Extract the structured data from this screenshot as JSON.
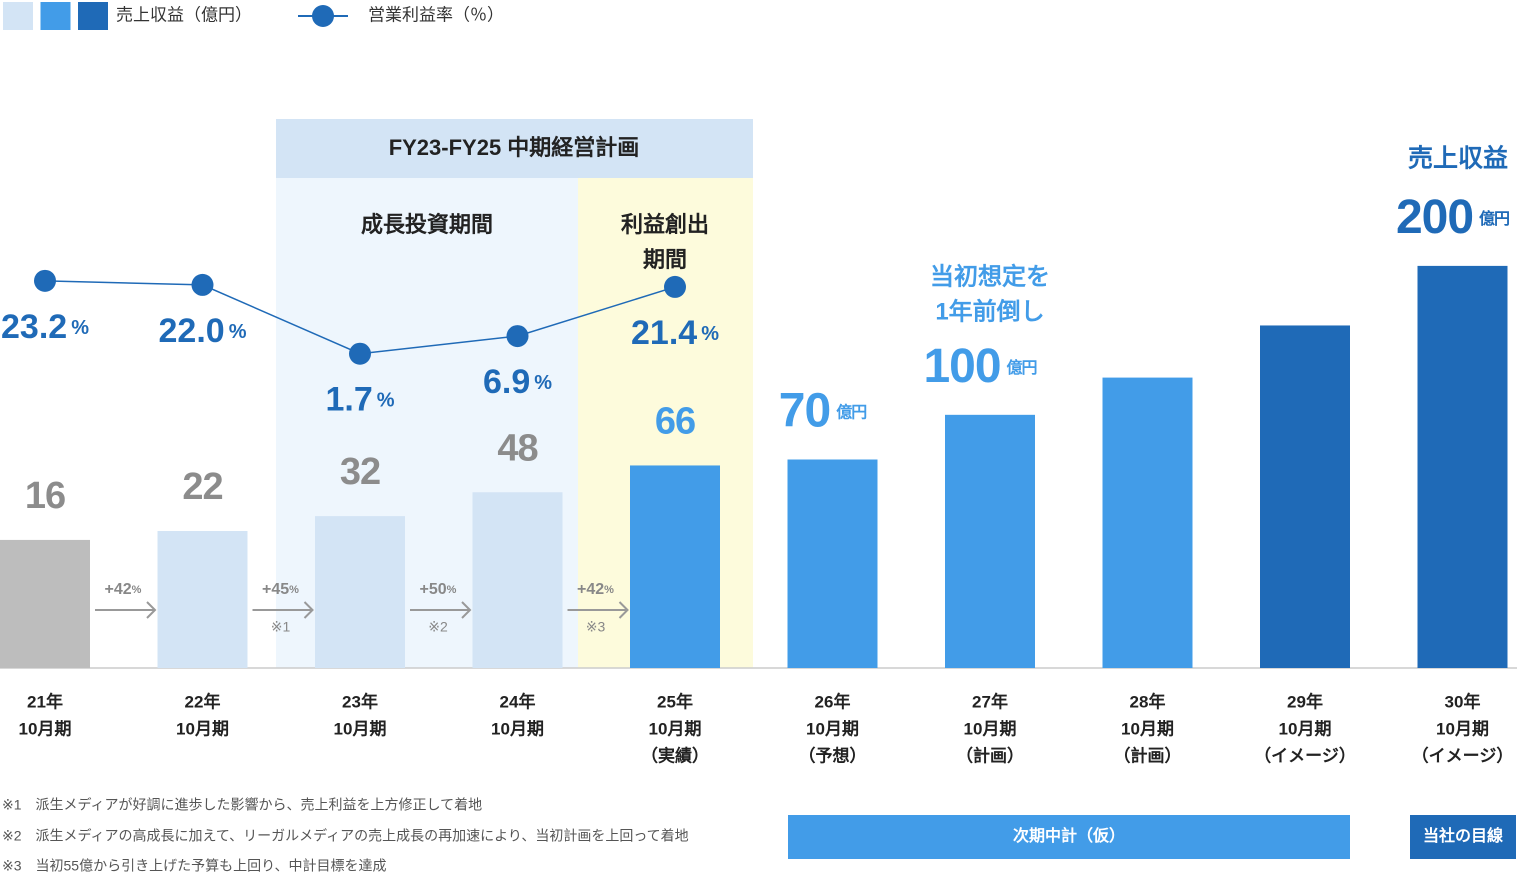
{
  "chart_data": {
    "type": "bar",
    "categories": [
      [
        "21年",
        "10月期"
      ],
      [
        "22年",
        "10月期"
      ],
      [
        "23年",
        "10月期"
      ],
      [
        "24年",
        "10月期"
      ],
      [
        "25年",
        "10月期",
        "（実績）"
      ],
      [
        "26年",
        "10月期",
        "（予想）"
      ],
      [
        "27年",
        "10月期",
        "（計画）"
      ],
      [
        "28年",
        "10月期",
        "（計画）"
      ],
      [
        "29年",
        "10月期",
        "（イメージ）"
      ],
      [
        "30年",
        "10月期",
        "（イメージ）"
      ]
    ],
    "ylim": [
      -70,
      210
    ],
    "y2lim": [
      -91,
      32
    ],
    "series": [
      {
        "name": "売上収益（億円）",
        "type": "bar",
        "values": [
          16,
          22,
          32,
          48,
          66,
          70,
          100,
          125,
          160,
          200
        ],
        "value_labels": [
          "16",
          "22",
          "32",
          "48",
          "66",
          "70",
          "100",
          null,
          null,
          "200"
        ],
        "value_label_units": [
          null,
          null,
          null,
          null,
          null,
          "億円",
          "億円",
          null,
          null,
          "億円"
        ],
        "colors": [
          "#bdbdbd",
          "#d3e4f5",
          "#d3e4f5",
          "#d3e4f5",
          "#429ce8",
          "#429ce8",
          "#429ce8",
          "#429ce8",
          "#1f6ab7",
          "#1f6ab7"
        ],
        "label_colors": [
          "#8c8c8c",
          "#8c8c8c",
          "#8c8c8c",
          "#8c8c8c",
          "#429ce8",
          "#429ce8",
          "#429ce8",
          null,
          null,
          "#1f6ab7"
        ],
        "legend_colors": [
          "#d3e4f5",
          "#429ce8",
          "#1f6ab7"
        ]
      },
      {
        "name": "営業利益率（％）",
        "type": "line",
        "axis": "y2",
        "color": "#1f6ab7",
        "values": [
          23.2,
          22.0,
          1.7,
          6.9,
          21.4,
          null,
          null,
          null,
          null,
          null
        ],
        "value_labels": [
          "23.2",
          "22.0",
          "1.7",
          "6.9",
          "21.4",
          null,
          null,
          null,
          null,
          null
        ]
      }
    ],
    "percent_unit": "%",
    "growth": [
      {
        "text": "+42",
        "note": null
      },
      {
        "text": "+45",
        "note": "※1"
      },
      {
        "text": "+50",
        "note": "※2"
      },
      {
        "text": "+42",
        "note": "※3"
      }
    ],
    "plan_header": "FY23-FY25 中期経営計画",
    "phase_invest": "成長投資期間",
    "phase_profit": [
      "利益創出",
      "期間"
    ],
    "early_note": [
      "当初想定を",
      "1年前倒し"
    ],
    "target_label": "売上収益",
    "next_plan": "次期中計（仮）",
    "our_view": "当社の目線",
    "footnotes": [
      "※1　派生メディアが好調に進歩した影響から、売上利益を上方修正して着地",
      "※2　派生メディアの高成長に加えて、リーガルメディアの売上成長の再加速により、当初計画を上回って着地",
      "※3　当初55億から引き上げた予算も上回り、中計目標を達成"
    ]
  }
}
